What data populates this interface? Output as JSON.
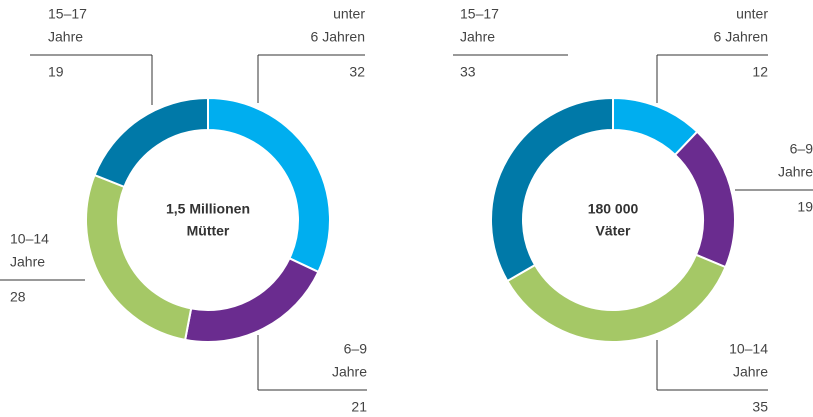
{
  "chart_data": [
    {
      "type": "donut",
      "center_label": [
        "1,5 Millionen",
        "Mütter"
      ],
      "categories": [
        [
          "unter",
          "6 Jahren"
        ],
        [
          "6–9",
          "Jahre"
        ],
        [
          "10–14",
          "Jahre"
        ],
        [
          "15–17",
          "Jahre"
        ]
      ],
      "values": [
        32,
        21,
        28,
        19
      ],
      "colors": [
        "#00aeef",
        "#6a2c8f",
        "#a5c866",
        "#0079a8"
      ]
    },
    {
      "type": "donut",
      "center_label": [
        "180 000",
        "Väter"
      ],
      "categories": [
        [
          "unter",
          "6 Jahren"
        ],
        [
          "6–9",
          "Jahre"
        ],
        [
          "10–14",
          "Jahre"
        ],
        [
          "15–17",
          "Jahre"
        ]
      ],
      "values": [
        12,
        19,
        35,
        33
      ],
      "colors": [
        "#00aeef",
        "#6a2c8f",
        "#a5c866",
        "#0079a8"
      ]
    }
  ]
}
